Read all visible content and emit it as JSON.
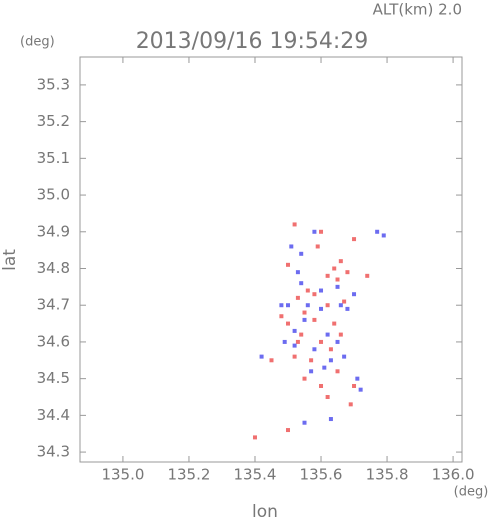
{
  "chart_data": {
    "type": "scatter",
    "header": "ALT(km) 2.0",
    "title": "2013/09/16 19:54:29",
    "y_unit": "(deg)",
    "x_unit": "(deg)",
    "x_label": "lon",
    "y_label": "lat",
    "xlim": [
      134.87,
      136.027
    ],
    "ylim": [
      34.273,
      35.376
    ],
    "xticks": [
      {
        "value": 135,
        "label": "135.0"
      },
      135.2,
      135.4,
      135.6,
      135.8,
      {
        "value": 136,
        "label": "136.0"
      }
    ],
    "yticks": [
      35.3,
      35.2,
      35.1,
      {
        "value": 35,
        "label": "35.0"
      },
      34.9,
      34.8,
      34.7,
      34.6,
      34.5,
      34.4,
      34.3
    ],
    "series": [
      {
        "color": "#f07070",
        "x": [
          135.52,
          135.6,
          135.66,
          135.64,
          135.62,
          135.65,
          135.68,
          135.53,
          135.55,
          135.58,
          135.5,
          135.54,
          135.6,
          135.63,
          135.57,
          135.52,
          135.66,
          135.62,
          135.58,
          135.55,
          135.6,
          135.65,
          135.7,
          135.69,
          135.62,
          135.53,
          135.48,
          135.67,
          135.64,
          135.56,
          135.5,
          135.59,
          135.7,
          135.74,
          135.4,
          135.5,
          135.45
        ],
        "values": [
          34.92,
          34.9,
          34.82,
          34.8,
          34.78,
          34.77,
          34.79,
          34.72,
          34.68,
          34.66,
          34.65,
          34.62,
          34.6,
          34.58,
          34.55,
          34.56,
          34.62,
          34.7,
          34.73,
          34.5,
          34.48,
          34.52,
          34.48,
          34.43,
          34.45,
          34.6,
          34.67,
          34.71,
          34.65,
          34.74,
          34.81,
          34.86,
          34.88,
          34.78,
          34.34,
          34.36,
          34.55
        ]
      },
      {
        "color": "#6c6cf0",
        "x": [
          135.51,
          135.54,
          135.53,
          135.58,
          135.77,
          135.79,
          135.56,
          135.6,
          135.66,
          135.68,
          135.52,
          135.49,
          135.58,
          135.62,
          135.65,
          135.55,
          135.5,
          135.63,
          135.61,
          135.67,
          135.71,
          135.72,
          135.57,
          135.6,
          135.65,
          135.7,
          135.54,
          135.48,
          135.42,
          135.55,
          135.63,
          135.52
        ],
        "values": [
          34.86,
          34.84,
          34.79,
          34.9,
          34.9,
          34.89,
          34.7,
          34.69,
          34.7,
          34.69,
          34.63,
          34.6,
          34.58,
          34.62,
          34.6,
          34.66,
          34.7,
          34.55,
          34.53,
          34.56,
          34.5,
          34.47,
          34.52,
          34.74,
          34.75,
          34.73,
          34.76,
          34.7,
          34.56,
          34.38,
          34.39,
          34.59
        ]
      }
    ]
  }
}
